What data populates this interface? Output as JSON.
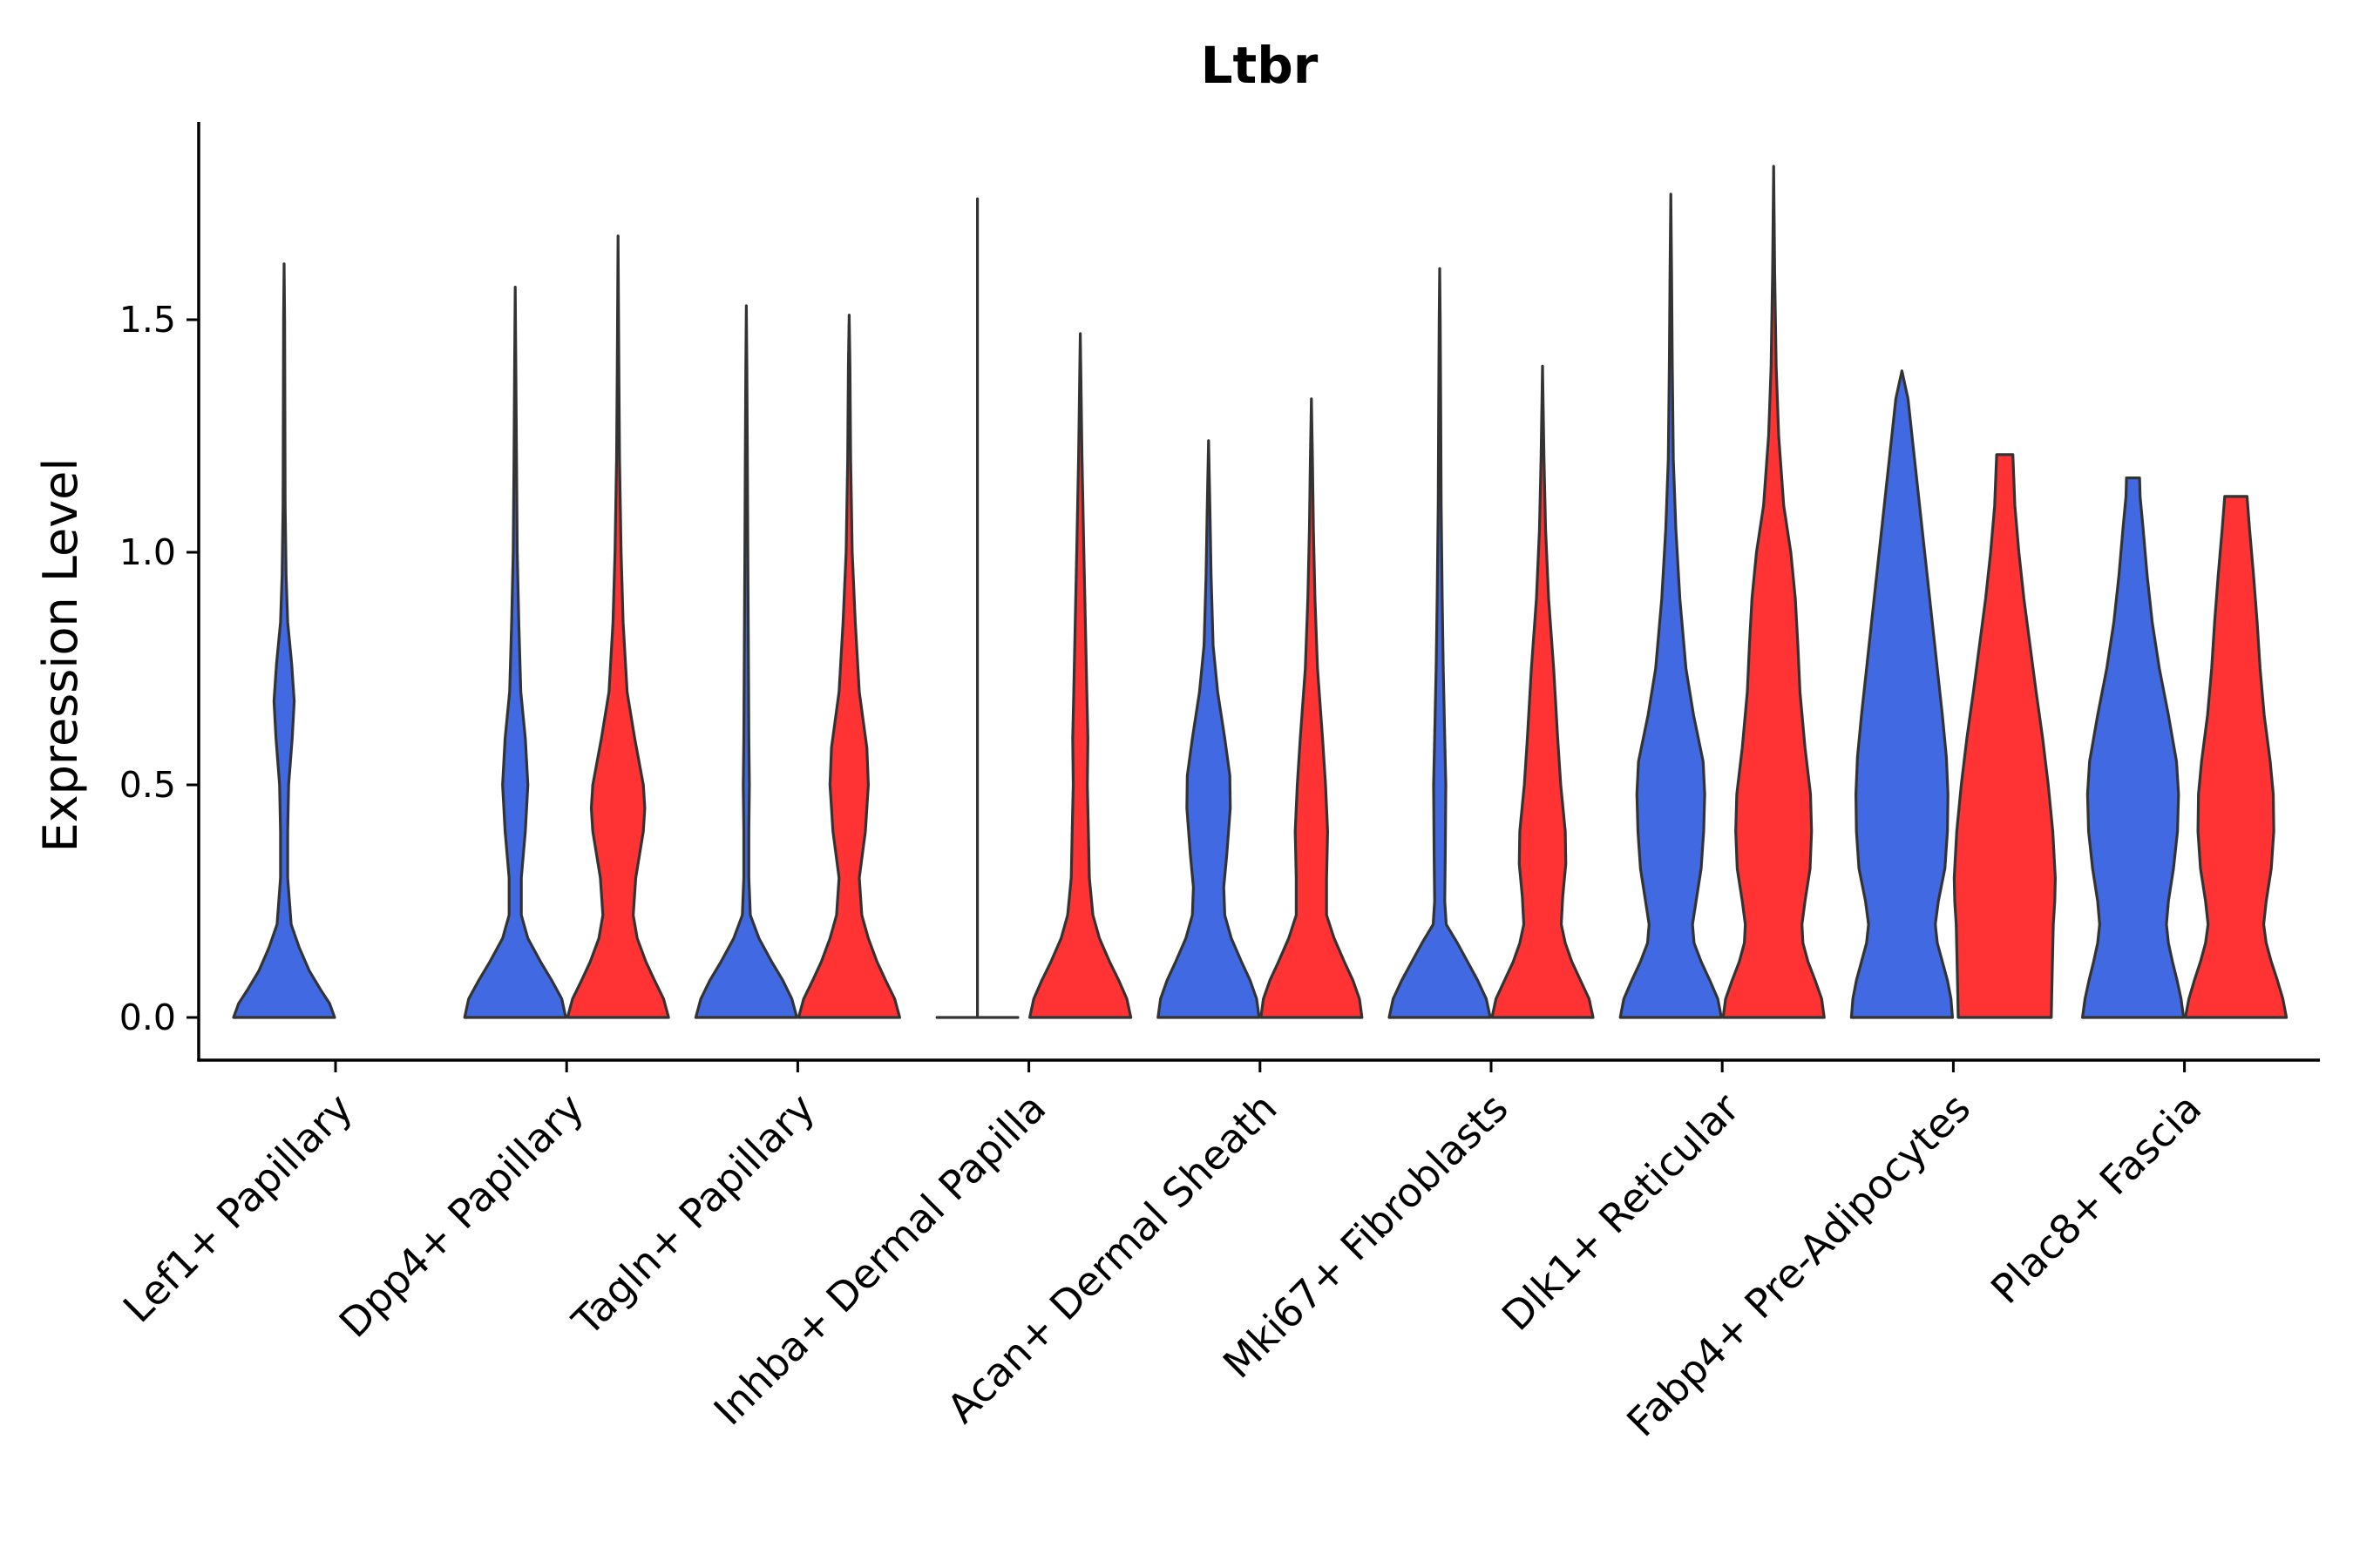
{
  "chart_data": {
    "type": "violin",
    "title": "Ltbr",
    "xlabel": "",
    "ylabel": "Expression Level",
    "ylim": [
      -0.09,
      1.93
    ],
    "yticks": [
      0.0,
      0.5,
      1.0,
      1.5
    ],
    "ytick_labels": [
      "0.0",
      "0.5",
      "1.0",
      "1.5"
    ],
    "categories": [
      "Lef1+ Papillary",
      "Dpp4+ Papillary",
      "Tagln+ Papillary",
      "Inhba+ Dermal Papilla",
      "Acan+ Dermal Sheath",
      "Mki67+ Fibroblasts",
      "Dlk1+ Reticular",
      "Fabp4+ Pre-Adipocytes",
      "Plac8+ Fascia"
    ],
    "series_colors": {
      "left": "#4169E1",
      "right": "#FF3333"
    },
    "violins": [
      {
        "category": "Lef1+ Papillary",
        "side": "left",
        "max": 1.62,
        "profile": [
          [
            0.0,
            1.0
          ],
          [
            0.03,
            0.9
          ],
          [
            0.06,
            0.72
          ],
          [
            0.1,
            0.5
          ],
          [
            0.15,
            0.3
          ],
          [
            0.2,
            0.14
          ],
          [
            0.3,
            0.07
          ],
          [
            0.4,
            0.07
          ],
          [
            0.5,
            0.09
          ],
          [
            0.6,
            0.16
          ],
          [
            0.68,
            0.2
          ],
          [
            0.76,
            0.15
          ],
          [
            0.85,
            0.07
          ],
          [
            0.95,
            0.04
          ],
          [
            1.1,
            0.02
          ],
          [
            1.3,
            0.015
          ],
          [
            1.5,
            0.01
          ],
          [
            1.62,
            0.0
          ]
        ]
      },
      {
        "category": "Dpp4+ Papillary",
        "side": "left",
        "max": 1.57,
        "profile": [
          [
            0.0,
            1.0
          ],
          [
            0.04,
            0.92
          ],
          [
            0.08,
            0.72
          ],
          [
            0.12,
            0.5
          ],
          [
            0.17,
            0.25
          ],
          [
            0.22,
            0.12
          ],
          [
            0.3,
            0.12
          ],
          [
            0.4,
            0.2
          ],
          [
            0.5,
            0.25
          ],
          [
            0.6,
            0.2
          ],
          [
            0.7,
            0.11
          ],
          [
            0.85,
            0.07
          ],
          [
            1.0,
            0.04
          ],
          [
            1.2,
            0.025
          ],
          [
            1.4,
            0.012
          ],
          [
            1.57,
            0.0
          ]
        ]
      },
      {
        "category": "Dpp4+ Papillary",
        "side": "right",
        "max": 1.68,
        "profile": [
          [
            0.0,
            1.0
          ],
          [
            0.04,
            0.9
          ],
          [
            0.08,
            0.72
          ],
          [
            0.12,
            0.55
          ],
          [
            0.17,
            0.38
          ],
          [
            0.22,
            0.3
          ],
          [
            0.3,
            0.35
          ],
          [
            0.4,
            0.5
          ],
          [
            0.45,
            0.53
          ],
          [
            0.5,
            0.5
          ],
          [
            0.6,
            0.33
          ],
          [
            0.7,
            0.18
          ],
          [
            0.85,
            0.1
          ],
          [
            1.0,
            0.06
          ],
          [
            1.2,
            0.03
          ],
          [
            1.4,
            0.015
          ],
          [
            1.68,
            0.0
          ]
        ]
      },
      {
        "category": "Tagln+ Papillary",
        "side": "left",
        "max": 1.53,
        "profile": [
          [
            0.0,
            1.0
          ],
          [
            0.04,
            0.9
          ],
          [
            0.08,
            0.72
          ],
          [
            0.12,
            0.5
          ],
          [
            0.17,
            0.25
          ],
          [
            0.22,
            0.08
          ],
          [
            0.3,
            0.05
          ],
          [
            0.4,
            0.05
          ],
          [
            0.5,
            0.06
          ],
          [
            0.6,
            0.05
          ],
          [
            0.8,
            0.04
          ],
          [
            1.0,
            0.03
          ],
          [
            1.2,
            0.02
          ],
          [
            1.4,
            0.01
          ],
          [
            1.53,
            0.0
          ]
        ]
      },
      {
        "category": "Tagln+ Papillary",
        "side": "right",
        "max": 1.51,
        "profile": [
          [
            0.0,
            1.0
          ],
          [
            0.04,
            0.9
          ],
          [
            0.08,
            0.72
          ],
          [
            0.12,
            0.55
          ],
          [
            0.17,
            0.38
          ],
          [
            0.22,
            0.25
          ],
          [
            0.3,
            0.2
          ],
          [
            0.4,
            0.32
          ],
          [
            0.5,
            0.38
          ],
          [
            0.58,
            0.35
          ],
          [
            0.7,
            0.2
          ],
          [
            0.85,
            0.12
          ],
          [
            1.0,
            0.06
          ],
          [
            1.2,
            0.03
          ],
          [
            1.4,
            0.015
          ],
          [
            1.51,
            0.0
          ]
        ]
      },
      {
        "category": "Inhba+ Dermal Papilla",
        "side": "left",
        "max": 1.76,
        "profile": [
          [
            0.0,
            0.8
          ],
          [
            0.0,
            0.0
          ],
          [
            1.76,
            0.0
          ]
        ]
      },
      {
        "category": "Inhba+ Dermal Papilla",
        "side": "right",
        "max": 1.47,
        "profile": [
          [
            0.0,
            1.0
          ],
          [
            0.04,
            0.92
          ],
          [
            0.08,
            0.76
          ],
          [
            0.12,
            0.58
          ],
          [
            0.17,
            0.38
          ],
          [
            0.22,
            0.25
          ],
          [
            0.3,
            0.18
          ],
          [
            0.4,
            0.16
          ],
          [
            0.5,
            0.14
          ],
          [
            0.6,
            0.15
          ],
          [
            0.7,
            0.13
          ],
          [
            0.85,
            0.1
          ],
          [
            1.0,
            0.07
          ],
          [
            1.2,
            0.035
          ],
          [
            1.35,
            0.015
          ],
          [
            1.47,
            0.0
          ]
        ]
      },
      {
        "category": "Acan+ Dermal Sheath",
        "side": "left",
        "max": 1.24,
        "profile": [
          [
            0.0,
            1.0
          ],
          [
            0.04,
            0.95
          ],
          [
            0.08,
            0.82
          ],
          [
            0.12,
            0.65
          ],
          [
            0.17,
            0.45
          ],
          [
            0.22,
            0.32
          ],
          [
            0.28,
            0.3
          ],
          [
            0.35,
            0.36
          ],
          [
            0.45,
            0.43
          ],
          [
            0.52,
            0.42
          ],
          [
            0.6,
            0.32
          ],
          [
            0.7,
            0.18
          ],
          [
            0.8,
            0.09
          ],
          [
            0.95,
            0.05
          ],
          [
            1.1,
            0.025
          ],
          [
            1.24,
            0.0
          ]
        ]
      },
      {
        "category": "Acan+ Dermal Sheath",
        "side": "right",
        "max": 1.33,
        "profile": [
          [
            0.0,
            1.0
          ],
          [
            0.04,
            0.95
          ],
          [
            0.08,
            0.82
          ],
          [
            0.12,
            0.65
          ],
          [
            0.17,
            0.45
          ],
          [
            0.22,
            0.3
          ],
          [
            0.3,
            0.3
          ],
          [
            0.4,
            0.32
          ],
          [
            0.5,
            0.28
          ],
          [
            0.6,
            0.22
          ],
          [
            0.75,
            0.12
          ],
          [
            0.9,
            0.07
          ],
          [
            1.05,
            0.04
          ],
          [
            1.2,
            0.02
          ],
          [
            1.33,
            0.0
          ]
        ]
      },
      {
        "category": "Mki67+ Fibroblasts",
        "side": "left",
        "max": 1.61,
        "profile": [
          [
            0.0,
            1.0
          ],
          [
            0.04,
            0.92
          ],
          [
            0.08,
            0.75
          ],
          [
            0.12,
            0.55
          ],
          [
            0.16,
            0.35
          ],
          [
            0.2,
            0.13
          ],
          [
            0.25,
            0.1
          ],
          [
            0.35,
            0.11
          ],
          [
            0.5,
            0.12
          ],
          [
            0.6,
            0.1
          ],
          [
            0.75,
            0.07
          ],
          [
            0.9,
            0.05
          ],
          [
            1.1,
            0.03
          ],
          [
            1.3,
            0.02
          ],
          [
            1.5,
            0.01
          ],
          [
            1.61,
            0.0
          ]
        ]
      },
      {
        "category": "Mki67+ Fibroblasts",
        "side": "right",
        "max": 1.4,
        "profile": [
          [
            0.0,
            1.0
          ],
          [
            0.04,
            0.92
          ],
          [
            0.08,
            0.75
          ],
          [
            0.12,
            0.58
          ],
          [
            0.16,
            0.45
          ],
          [
            0.2,
            0.37
          ],
          [
            0.26,
            0.4
          ],
          [
            0.33,
            0.46
          ],
          [
            0.4,
            0.45
          ],
          [
            0.5,
            0.36
          ],
          [
            0.6,
            0.3
          ],
          [
            0.75,
            0.22
          ],
          [
            0.9,
            0.12
          ],
          [
            1.05,
            0.06
          ],
          [
            1.2,
            0.03
          ],
          [
            1.4,
            0.0
          ]
        ]
      },
      {
        "category": "Dlk1+ Reticular",
        "side": "left",
        "max": 1.77,
        "profile": [
          [
            0.0,
            1.0
          ],
          [
            0.04,
            0.93
          ],
          [
            0.08,
            0.77
          ],
          [
            0.12,
            0.6
          ],
          [
            0.16,
            0.46
          ],
          [
            0.2,
            0.43
          ],
          [
            0.25,
            0.5
          ],
          [
            0.32,
            0.6
          ],
          [
            0.4,
            0.65
          ],
          [
            0.48,
            0.67
          ],
          [
            0.55,
            0.64
          ],
          [
            0.65,
            0.45
          ],
          [
            0.75,
            0.3
          ],
          [
            0.9,
            0.18
          ],
          [
            1.05,
            0.1
          ],
          [
            1.2,
            0.05
          ],
          [
            1.4,
            0.03
          ],
          [
            1.6,
            0.015
          ],
          [
            1.77,
            0.0
          ]
        ]
      },
      {
        "category": "Dlk1+ Reticular",
        "side": "right",
        "max": 1.83,
        "profile": [
          [
            0.0,
            1.0
          ],
          [
            0.04,
            0.95
          ],
          [
            0.08,
            0.82
          ],
          [
            0.12,
            0.68
          ],
          [
            0.16,
            0.58
          ],
          [
            0.2,
            0.56
          ],
          [
            0.25,
            0.62
          ],
          [
            0.32,
            0.72
          ],
          [
            0.4,
            0.75
          ],
          [
            0.48,
            0.73
          ],
          [
            0.58,
            0.62
          ],
          [
            0.7,
            0.52
          ],
          [
            0.8,
            0.48
          ],
          [
            0.9,
            0.43
          ],
          [
            1.0,
            0.34
          ],
          [
            1.1,
            0.2
          ],
          [
            1.25,
            0.1
          ],
          [
            1.4,
            0.05
          ],
          [
            1.6,
            0.02
          ],
          [
            1.83,
            0.0
          ]
        ]
      },
      {
        "category": "Fabp4+ Pre-Adipocytes",
        "side": "left",
        "max": 1.39,
        "profile": [
          [
            0.0,
            1.0
          ],
          [
            0.04,
            0.97
          ],
          [
            0.08,
            0.9
          ],
          [
            0.12,
            0.8
          ],
          [
            0.16,
            0.7
          ],
          [
            0.2,
            0.66
          ],
          [
            0.25,
            0.72
          ],
          [
            0.32,
            0.85
          ],
          [
            0.4,
            0.9
          ],
          [
            0.48,
            0.91
          ],
          [
            0.56,
            0.88
          ],
          [
            0.65,
            0.8
          ],
          [
            0.75,
            0.7
          ],
          [
            0.85,
            0.6
          ],
          [
            0.95,
            0.5
          ],
          [
            1.05,
            0.4
          ],
          [
            1.15,
            0.3
          ],
          [
            1.25,
            0.2
          ],
          [
            1.33,
            0.12
          ],
          [
            1.39,
            0.0
          ]
        ]
      },
      {
        "category": "Fabp4+ Pre-Adipocytes",
        "side": "right",
        "max": 1.21,
        "profile": [
          [
            0.0,
            0.92
          ],
          [
            0.05,
            0.93
          ],
          [
            0.1,
            0.94
          ],
          [
            0.15,
            0.95
          ],
          [
            0.2,
            0.96
          ],
          [
            0.25,
            0.99
          ],
          [
            0.3,
            1.0
          ],
          [
            0.4,
            0.95
          ],
          [
            0.5,
            0.86
          ],
          [
            0.6,
            0.75
          ],
          [
            0.7,
            0.62
          ],
          [
            0.8,
            0.5
          ],
          [
            0.9,
            0.38
          ],
          [
            1.0,
            0.28
          ],
          [
            1.1,
            0.2
          ],
          [
            1.21,
            0.16
          ],
          [
            1.21,
            0.0
          ]
        ]
      },
      {
        "category": "Plac8+ Fascia",
        "side": "left",
        "max": 1.16,
        "profile": [
          [
            0.0,
            1.0
          ],
          [
            0.04,
            0.95
          ],
          [
            0.08,
            0.87
          ],
          [
            0.12,
            0.78
          ],
          [
            0.16,
            0.7
          ],
          [
            0.2,
            0.66
          ],
          [
            0.25,
            0.7
          ],
          [
            0.32,
            0.8
          ],
          [
            0.4,
            0.88
          ],
          [
            0.48,
            0.9
          ],
          [
            0.55,
            0.86
          ],
          [
            0.65,
            0.7
          ],
          [
            0.75,
            0.52
          ],
          [
            0.85,
            0.38
          ],
          [
            0.95,
            0.28
          ],
          [
            1.05,
            0.2
          ],
          [
            1.12,
            0.14
          ],
          [
            1.16,
            0.13
          ],
          [
            1.16,
            0.0
          ]
        ]
      },
      {
        "category": "Plac8+ Fascia",
        "side": "right",
        "max": 1.12,
        "profile": [
          [
            0.0,
            1.0
          ],
          [
            0.04,
            0.93
          ],
          [
            0.08,
            0.82
          ],
          [
            0.12,
            0.7
          ],
          [
            0.16,
            0.6
          ],
          [
            0.2,
            0.55
          ],
          [
            0.25,
            0.6
          ],
          [
            0.32,
            0.7
          ],
          [
            0.4,
            0.75
          ],
          [
            0.48,
            0.74
          ],
          [
            0.55,
            0.68
          ],
          [
            0.65,
            0.56
          ],
          [
            0.75,
            0.48
          ],
          [
            0.85,
            0.42
          ],
          [
            0.95,
            0.35
          ],
          [
            1.05,
            0.27
          ],
          [
            1.12,
            0.22
          ],
          [
            1.12,
            0.0
          ]
        ]
      }
    ]
  }
}
